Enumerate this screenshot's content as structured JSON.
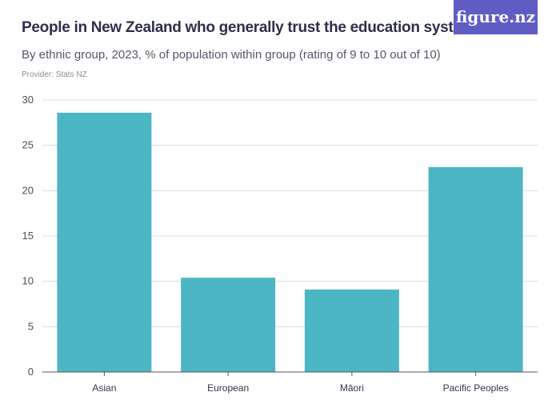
{
  "header": {
    "title": "People in New Zealand who generally trust the education system",
    "subtitle": "By ethnic group, 2023, % of population within group (rating of 9 to 10 out of 10)",
    "provider": "Provider: Stats NZ",
    "logo_text": "figure.nz"
  },
  "colors": {
    "bar": "#4db6c4",
    "grid": "#dcdcdc",
    "axis": "#555555",
    "logo_bg": "#5f5cc4"
  },
  "chart_data": {
    "type": "bar",
    "categories": [
      "Asian",
      "European",
      "Māori",
      "Pacific Peoples"
    ],
    "values": [
      28.6,
      10.4,
      9.1,
      22.6
    ],
    "ylim": [
      0,
      30
    ],
    "yticks": [
      "0",
      "5",
      "10",
      "15",
      "20",
      "25",
      "30"
    ],
    "grid": true
  }
}
